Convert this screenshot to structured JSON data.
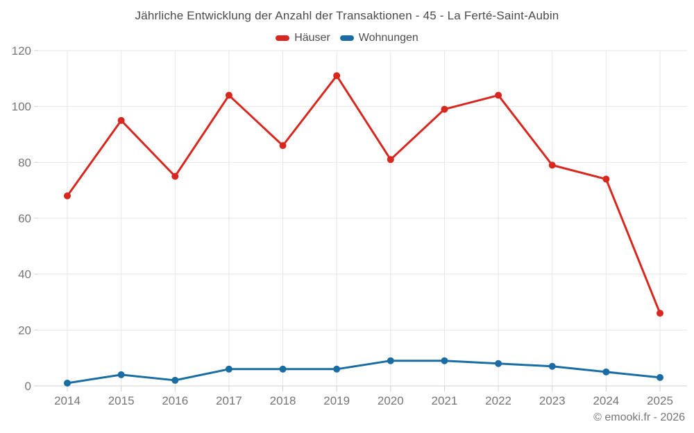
{
  "chart_data": {
    "type": "line",
    "title": "Jährliche Entwicklung der Anzahl der Transaktionen - 45 - La Ferté-Saint-Aubin",
    "categories": [
      "2014",
      "2015",
      "2016",
      "2017",
      "2018",
      "2019",
      "2020",
      "2021",
      "2022",
      "2023",
      "2024",
      "2025"
    ],
    "series": [
      {
        "name": "Häuser",
        "color": "#d7271f",
        "values": [
          68,
          95,
          75,
          104,
          86,
          111,
          81,
          99,
          104,
          79,
          74,
          26
        ]
      },
      {
        "name": "Wohnungen",
        "color": "#1a6da3",
        "values": [
          1,
          4,
          2,
          6,
          6,
          6,
          9,
          9,
          8,
          7,
          5,
          3
        ]
      }
    ],
    "xlabel": "",
    "ylabel": "",
    "ylim": [
      0,
      120
    ],
    "yticks": [
      0,
      20,
      40,
      60,
      80,
      100,
      120
    ],
    "grid": true,
    "legend_position": "top"
  },
  "footer": {
    "credit": "© emooki.fr - 2026"
  },
  "colors": {
    "title_text": "#4a4a4a",
    "axis_label_text": "#757575",
    "gridline": "#e6e6e6",
    "axis_line": "#d0d0d0",
    "background": "#ffffff"
  }
}
